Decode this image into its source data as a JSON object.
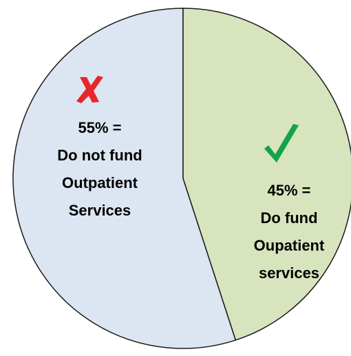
{
  "chart_data": {
    "type": "pie",
    "values": [
      55,
      45
    ],
    "value_labels": [
      "55% =",
      "45% ="
    ],
    "categories": [
      [
        "Do not fund",
        "Outpatient",
        "Services"
      ],
      [
        "Do fund",
        "Oupatient",
        "services"
      ]
    ],
    "colors": [
      "#dce6f2",
      "#d7e4bd"
    ]
  }
}
